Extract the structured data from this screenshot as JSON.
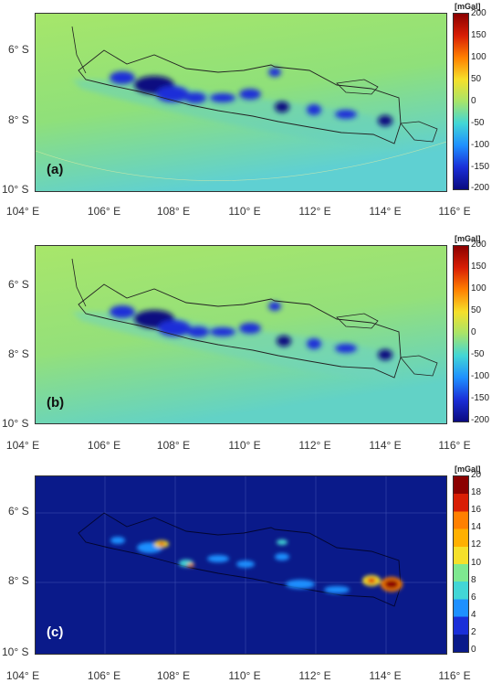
{
  "panels": [
    {
      "id": "a",
      "label": "(a)",
      "unit": "[mGal]",
      "colorbar_ticks": [
        "200",
        "150",
        "100",
        "50",
        "0",
        "-50",
        "-100",
        "-150",
        "-200"
      ],
      "colormap": "diverging-jet",
      "background": "#9de36e"
    },
    {
      "id": "b",
      "label": "(b)",
      "unit": "[mGal]",
      "colorbar_ticks": [
        "200",
        "150",
        "100",
        "50",
        "0",
        "-50",
        "-100",
        "-150",
        "-200"
      ],
      "colormap": "diverging-jet",
      "background": "#9de36e"
    },
    {
      "id": "c",
      "label": "(c)",
      "unit": "[mGal]",
      "colorbar_ticks": [
        "20",
        "18",
        "16",
        "14",
        "12",
        "10",
        "8",
        "6",
        "4",
        "2",
        "0"
      ],
      "colormap": "jet-sequential",
      "background": "#0a1a8a"
    }
  ],
  "y_ticks": [
    "6° S",
    "8° S",
    "10° S"
  ],
  "x_ticks": [
    "104° E",
    "106° E",
    "108° E",
    "110° E",
    "112° E",
    "114° E",
    "116° E"
  ],
  "colors": {
    "ocean_green": "#9de36e",
    "ocean_cyan": "#5fd0d2",
    "anomaly_blue": "#1a2fd8",
    "anomaly_dark": "#0a0a80",
    "coast": "#222222",
    "dark_bg": "#0a1a8a"
  }
}
